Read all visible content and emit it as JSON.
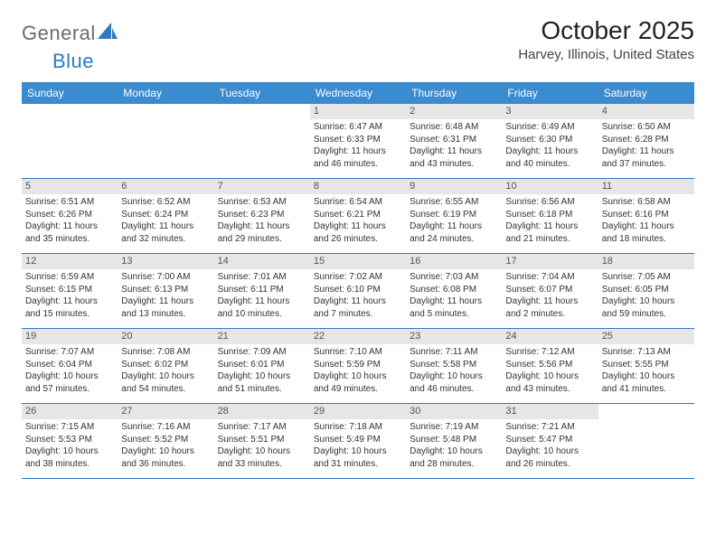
{
  "colors": {
    "header_bg": "#3b8bd0",
    "header_text": "#ffffff",
    "rule": "#2f7abf",
    "daynum_bg": "#e6e6e6",
    "daynum_text": "#555555",
    "body_text": "#333333",
    "logo_gray": "#6b6b6b",
    "logo_blue": "#2f7abf",
    "title_color": "#222222",
    "location_color": "#444444",
    "page_bg": "#ffffff"
  },
  "typography": {
    "month_title_size_pt": 21,
    "location_size_pt": 11,
    "dow_size_pt": 9,
    "daynum_size_pt": 8,
    "body_size_pt": 7.5,
    "font_family": "Arial"
  },
  "logo": {
    "general": "General",
    "blue": "Blue"
  },
  "title": "October 2025",
  "location": "Harvey, Illinois, United States",
  "days_of_week": [
    "Sunday",
    "Monday",
    "Tuesday",
    "Wednesday",
    "Thursday",
    "Friday",
    "Saturday"
  ],
  "weeks": [
    [
      {
        "empty": true
      },
      {
        "empty": true
      },
      {
        "empty": true
      },
      {
        "num": "1",
        "sunrise": "Sunrise: 6:47 AM",
        "sunset": "Sunset: 6:33 PM",
        "daylight": "Daylight: 11 hours and 46 minutes."
      },
      {
        "num": "2",
        "sunrise": "Sunrise: 6:48 AM",
        "sunset": "Sunset: 6:31 PM",
        "daylight": "Daylight: 11 hours and 43 minutes."
      },
      {
        "num": "3",
        "sunrise": "Sunrise: 6:49 AM",
        "sunset": "Sunset: 6:30 PM",
        "daylight": "Daylight: 11 hours and 40 minutes."
      },
      {
        "num": "4",
        "sunrise": "Sunrise: 6:50 AM",
        "sunset": "Sunset: 6:28 PM",
        "daylight": "Daylight: 11 hours and 37 minutes."
      }
    ],
    [
      {
        "num": "5",
        "sunrise": "Sunrise: 6:51 AM",
        "sunset": "Sunset: 6:26 PM",
        "daylight": "Daylight: 11 hours and 35 minutes."
      },
      {
        "num": "6",
        "sunrise": "Sunrise: 6:52 AM",
        "sunset": "Sunset: 6:24 PM",
        "daylight": "Daylight: 11 hours and 32 minutes."
      },
      {
        "num": "7",
        "sunrise": "Sunrise: 6:53 AM",
        "sunset": "Sunset: 6:23 PM",
        "daylight": "Daylight: 11 hours and 29 minutes."
      },
      {
        "num": "8",
        "sunrise": "Sunrise: 6:54 AM",
        "sunset": "Sunset: 6:21 PM",
        "daylight": "Daylight: 11 hours and 26 minutes."
      },
      {
        "num": "9",
        "sunrise": "Sunrise: 6:55 AM",
        "sunset": "Sunset: 6:19 PM",
        "daylight": "Daylight: 11 hours and 24 minutes."
      },
      {
        "num": "10",
        "sunrise": "Sunrise: 6:56 AM",
        "sunset": "Sunset: 6:18 PM",
        "daylight": "Daylight: 11 hours and 21 minutes."
      },
      {
        "num": "11",
        "sunrise": "Sunrise: 6:58 AM",
        "sunset": "Sunset: 6:16 PM",
        "daylight": "Daylight: 11 hours and 18 minutes."
      }
    ],
    [
      {
        "num": "12",
        "sunrise": "Sunrise: 6:59 AM",
        "sunset": "Sunset: 6:15 PM",
        "daylight": "Daylight: 11 hours and 15 minutes."
      },
      {
        "num": "13",
        "sunrise": "Sunrise: 7:00 AM",
        "sunset": "Sunset: 6:13 PM",
        "daylight": "Daylight: 11 hours and 13 minutes."
      },
      {
        "num": "14",
        "sunrise": "Sunrise: 7:01 AM",
        "sunset": "Sunset: 6:11 PM",
        "daylight": "Daylight: 11 hours and 10 minutes."
      },
      {
        "num": "15",
        "sunrise": "Sunrise: 7:02 AM",
        "sunset": "Sunset: 6:10 PM",
        "daylight": "Daylight: 11 hours and 7 minutes."
      },
      {
        "num": "16",
        "sunrise": "Sunrise: 7:03 AM",
        "sunset": "Sunset: 6:08 PM",
        "daylight": "Daylight: 11 hours and 5 minutes."
      },
      {
        "num": "17",
        "sunrise": "Sunrise: 7:04 AM",
        "sunset": "Sunset: 6:07 PM",
        "daylight": "Daylight: 11 hours and 2 minutes."
      },
      {
        "num": "18",
        "sunrise": "Sunrise: 7:05 AM",
        "sunset": "Sunset: 6:05 PM",
        "daylight": "Daylight: 10 hours and 59 minutes."
      }
    ],
    [
      {
        "num": "19",
        "sunrise": "Sunrise: 7:07 AM",
        "sunset": "Sunset: 6:04 PM",
        "daylight": "Daylight: 10 hours and 57 minutes."
      },
      {
        "num": "20",
        "sunrise": "Sunrise: 7:08 AM",
        "sunset": "Sunset: 6:02 PM",
        "daylight": "Daylight: 10 hours and 54 minutes."
      },
      {
        "num": "21",
        "sunrise": "Sunrise: 7:09 AM",
        "sunset": "Sunset: 6:01 PM",
        "daylight": "Daylight: 10 hours and 51 minutes."
      },
      {
        "num": "22",
        "sunrise": "Sunrise: 7:10 AM",
        "sunset": "Sunset: 5:59 PM",
        "daylight": "Daylight: 10 hours and 49 minutes."
      },
      {
        "num": "23",
        "sunrise": "Sunrise: 7:11 AM",
        "sunset": "Sunset: 5:58 PM",
        "daylight": "Daylight: 10 hours and 46 minutes."
      },
      {
        "num": "24",
        "sunrise": "Sunrise: 7:12 AM",
        "sunset": "Sunset: 5:56 PM",
        "daylight": "Daylight: 10 hours and 43 minutes."
      },
      {
        "num": "25",
        "sunrise": "Sunrise: 7:13 AM",
        "sunset": "Sunset: 5:55 PM",
        "daylight": "Daylight: 10 hours and 41 minutes."
      }
    ],
    [
      {
        "num": "26",
        "sunrise": "Sunrise: 7:15 AM",
        "sunset": "Sunset: 5:53 PM",
        "daylight": "Daylight: 10 hours and 38 minutes."
      },
      {
        "num": "27",
        "sunrise": "Sunrise: 7:16 AM",
        "sunset": "Sunset: 5:52 PM",
        "daylight": "Daylight: 10 hours and 36 minutes."
      },
      {
        "num": "28",
        "sunrise": "Sunrise: 7:17 AM",
        "sunset": "Sunset: 5:51 PM",
        "daylight": "Daylight: 10 hours and 33 minutes."
      },
      {
        "num": "29",
        "sunrise": "Sunrise: 7:18 AM",
        "sunset": "Sunset: 5:49 PM",
        "daylight": "Daylight: 10 hours and 31 minutes."
      },
      {
        "num": "30",
        "sunrise": "Sunrise: 7:19 AM",
        "sunset": "Sunset: 5:48 PM",
        "daylight": "Daylight: 10 hours and 28 minutes."
      },
      {
        "num": "31",
        "sunrise": "Sunrise: 7:21 AM",
        "sunset": "Sunset: 5:47 PM",
        "daylight": "Daylight: 10 hours and 26 minutes."
      },
      {
        "empty": true
      }
    ]
  ]
}
